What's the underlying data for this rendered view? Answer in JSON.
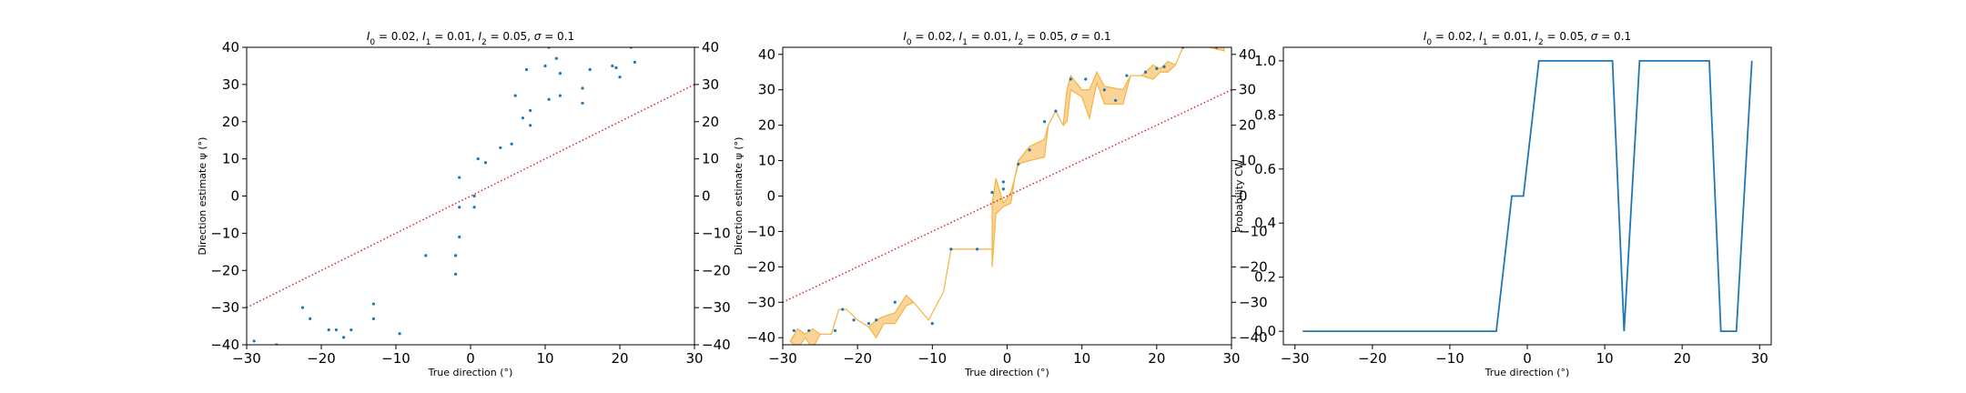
{
  "chart_data": [
    {
      "type": "scatter",
      "title": "I_0 = 0.02, I_1 = 0.01, I_2 = 0.05, σ = 0.1",
      "title_parts": [
        "I",
        "0",
        " = 0.02, ",
        "I",
        "1",
        " = 0.01, ",
        "I",
        "2",
        " = 0.05, ",
        "σ",
        " = 0.1"
      ],
      "xlabel": "True direction (°)",
      "ylabel": "Direction estimate ψ (°)",
      "xlim": [
        -30,
        30
      ],
      "ylim": [
        -40,
        40
      ],
      "xticks": [
        -30,
        -20,
        -10,
        0,
        10,
        20,
        30
      ],
      "yticks": [
        -40,
        -30,
        -20,
        -10,
        0,
        10,
        20,
        30,
        40
      ],
      "right_yticks": [
        -40,
        -30,
        -20,
        -10,
        0,
        10,
        20,
        30,
        40
      ],
      "grid": false,
      "colors": {
        "points": "#1f77b4",
        "reference": "#d62728"
      },
      "reference_line": {
        "style": "dotted",
        "x": [
          -30,
          30
        ],
        "y": [
          -30,
          30
        ]
      },
      "points": [
        [
          -29,
          -39
        ],
        [
          -26,
          -40
        ],
        [
          -22.5,
          -30
        ],
        [
          -21.5,
          -33
        ],
        [
          -19,
          -36
        ],
        [
          -18,
          -36
        ],
        [
          -17,
          -38
        ],
        [
          -16,
          -36
        ],
        [
          -13,
          -33
        ],
        [
          -13,
          -29
        ],
        [
          -9.5,
          -37
        ],
        [
          -6,
          -16
        ],
        [
          -2,
          -21
        ],
        [
          -2,
          -16
        ],
        [
          -1.5,
          -11
        ],
        [
          -1.5,
          -3
        ],
        [
          -1.5,
          5
        ],
        [
          0.5,
          -3
        ],
        [
          0.5,
          0
        ],
        [
          1,
          10
        ],
        [
          2,
          9
        ],
        [
          4,
          13
        ],
        [
          5.5,
          14
        ],
        [
          6,
          27
        ],
        [
          7,
          21
        ],
        [
          7.5,
          34
        ],
        [
          8,
          19
        ],
        [
          8,
          23
        ],
        [
          10,
          35
        ],
        [
          10.5,
          26
        ],
        [
          10.5,
          40
        ],
        [
          11.5,
          37
        ],
        [
          12,
          27
        ],
        [
          12,
          33
        ],
        [
          15,
          25
        ],
        [
          15,
          29
        ],
        [
          16,
          34
        ],
        [
          19,
          35
        ],
        [
          19.5,
          34.5
        ],
        [
          20,
          32
        ],
        [
          21.5,
          40
        ],
        [
          22,
          36
        ]
      ]
    },
    {
      "type": "scatter",
      "title": "I_0 = 0.02, I_1 = 0.01, I_2 = 0.05, σ = 0.1",
      "title_parts": [
        "I",
        "0",
        " = 0.02, ",
        "I",
        "1",
        " = 0.01, ",
        "I",
        "2",
        " = 0.05, ",
        "σ",
        " = 0.1"
      ],
      "xlabel": "True direction (°)",
      "ylabel": "Direction estimate ψ (°)",
      "xlim": [
        -30,
        30
      ],
      "ylim": [
        -42,
        42
      ],
      "xticks": [
        -30,
        -20,
        -10,
        0,
        10,
        20,
        30
      ],
      "yticks": [
        -40,
        -30,
        -20,
        -10,
        0,
        10,
        20,
        30,
        40
      ],
      "right_yticks": [
        -40,
        -30,
        -20,
        -10,
        0,
        10,
        20,
        30,
        40
      ],
      "grid": false,
      "colors": {
        "points": "#1f77b4",
        "reference": "#d62728",
        "band": "#f5b342"
      },
      "reference_line": {
        "style": "dotted",
        "x": [
          -30,
          30
        ],
        "y": [
          -30,
          30
        ]
      },
      "points": [
        [
          -28.5,
          -38
        ],
        [
          -26.5,
          -38
        ],
        [
          -23,
          -38
        ],
        [
          -22,
          -32
        ],
        [
          -20.5,
          -35
        ],
        [
          -18.5,
          -36
        ],
        [
          -17.5,
          -35
        ],
        [
          -15,
          -30
        ],
        [
          -10,
          -36
        ],
        [
          -7.5,
          -15
        ],
        [
          -4,
          -15
        ],
        [
          -2,
          1
        ],
        [
          -0.5,
          2
        ],
        [
          -0.5,
          4
        ],
        [
          1.5,
          9
        ],
        [
          3,
          13
        ],
        [
          5,
          21
        ],
        [
          6.5,
          24
        ],
        [
          8.5,
          33
        ],
        [
          10.5,
          33
        ],
        [
          13,
          30
        ],
        [
          14.5,
          27
        ],
        [
          16,
          34
        ],
        [
          18.5,
          35
        ],
        [
          20,
          36
        ],
        [
          21,
          36.5
        ],
        [
          23.5,
          42
        ],
        [
          28,
          42
        ]
      ],
      "band_upper": [
        [
          -29,
          -41
        ],
        [
          -28,
          -37.5
        ],
        [
          -27,
          -39
        ],
        [
          -26,
          -37.5
        ],
        [
          -25,
          -39
        ],
        [
          -23.5,
          -39
        ],
        [
          -22.5,
          -32
        ],
        [
          -21.5,
          -32
        ],
        [
          -20,
          -35
        ],
        [
          -18.5,
          -37
        ],
        [
          -17.5,
          -35
        ],
        [
          -16.5,
          -34
        ],
        [
          -15,
          -33
        ],
        [
          -13.5,
          -28
        ],
        [
          -12.5,
          -30
        ],
        [
          -10.5,
          -35
        ],
        [
          -8.5,
          -27
        ],
        [
          -7.5,
          -15
        ],
        [
          -2,
          -15
        ],
        [
          -2,
          -2
        ],
        [
          -1.5,
          5
        ],
        [
          -0.5,
          -2
        ],
        [
          0.5,
          1
        ],
        [
          1,
          5
        ],
        [
          1.5,
          10
        ],
        [
          3,
          14
        ],
        [
          5,
          16
        ],
        [
          5.5,
          20
        ],
        [
          6.5,
          24
        ],
        [
          7.5,
          20
        ],
        [
          8,
          30
        ],
        [
          8.5,
          34
        ],
        [
          10,
          30
        ],
        [
          11,
          30
        ],
        [
          12,
          35
        ],
        [
          13,
          31
        ],
        [
          15.5,
          30
        ],
        [
          16.5,
          34
        ],
        [
          18,
          34
        ],
        [
          19.5,
          37
        ],
        [
          20.5,
          36
        ],
        [
          21.5,
          38
        ],
        [
          22.5,
          37
        ],
        [
          23.5,
          42
        ],
        [
          27,
          42
        ],
        [
          29,
          43
        ]
      ],
      "band_lower": [
        [
          -29,
          -41
        ],
        [
          -28,
          -43
        ],
        [
          -27,
          -40
        ],
        [
          -26,
          -43
        ],
        [
          -25,
          -39
        ],
        [
          -23.5,
          -39
        ],
        [
          -22.5,
          -32
        ],
        [
          -21.5,
          -32
        ],
        [
          -20,
          -35
        ],
        [
          -18.5,
          -37
        ],
        [
          -17.5,
          -40
        ],
        [
          -16.5,
          -36
        ],
        [
          -15,
          -36
        ],
        [
          -13.5,
          -31
        ],
        [
          -12.5,
          -30
        ],
        [
          -10.5,
          -35
        ],
        [
          -8.5,
          -27
        ],
        [
          -7.5,
          -15
        ],
        [
          -2,
          -15
        ],
        [
          -2,
          -20
        ],
        [
          -1.5,
          -5
        ],
        [
          -0.5,
          -3
        ],
        [
          0.5,
          -2
        ],
        [
          1,
          5
        ],
        [
          1.5,
          9
        ],
        [
          3,
          10
        ],
        [
          5,
          11
        ],
        [
          5.5,
          20
        ],
        [
          6.5,
          24
        ],
        [
          7.5,
          20
        ],
        [
          8,
          21
        ],
        [
          8.5,
          30
        ],
        [
          10,
          28
        ],
        [
          11,
          22
        ],
        [
          12,
          32
        ],
        [
          13,
          26
        ],
        [
          15.5,
          26
        ],
        [
          16.5,
          34
        ],
        [
          18,
          34
        ],
        [
          19.5,
          33
        ],
        [
          20.5,
          35
        ],
        [
          21.5,
          35
        ],
        [
          22.5,
          37
        ],
        [
          23.5,
          42
        ],
        [
          27,
          42
        ],
        [
          29,
          41
        ]
      ]
    },
    {
      "type": "line",
      "title": "I_0 = 0.02, I_1 = 0.01, I_2 = 0.05, σ = 0.1",
      "title_parts": [
        "I",
        "0",
        " = 0.02, ",
        "I",
        "1",
        " = 0.01, ",
        "I",
        "2",
        " = 0.05, ",
        "σ",
        " = 0.1"
      ],
      "xlabel": "True direction (°)",
      "ylabel": "Probability CW",
      "xlim": [
        -31.5,
        31.5
      ],
      "ylim": [
        -0.05,
        1.05
      ],
      "xticks": [
        -30,
        -20,
        -10,
        0,
        10,
        20,
        30
      ],
      "yticks": [
        0.0,
        0.2,
        0.4,
        0.6,
        0.8,
        1.0
      ],
      "ytick_format": "0.1f",
      "grid": false,
      "colors": {
        "line": "#1f77b4"
      },
      "x": [
        -29,
        -4,
        -2,
        -0.5,
        1.5,
        11,
        12.5,
        14.5,
        23.5,
        25,
        27,
        29
      ],
      "y": [
        0,
        0,
        0.5,
        0.5,
        1,
        1,
        0,
        1,
        1,
        0,
        0,
        1
      ]
    }
  ]
}
